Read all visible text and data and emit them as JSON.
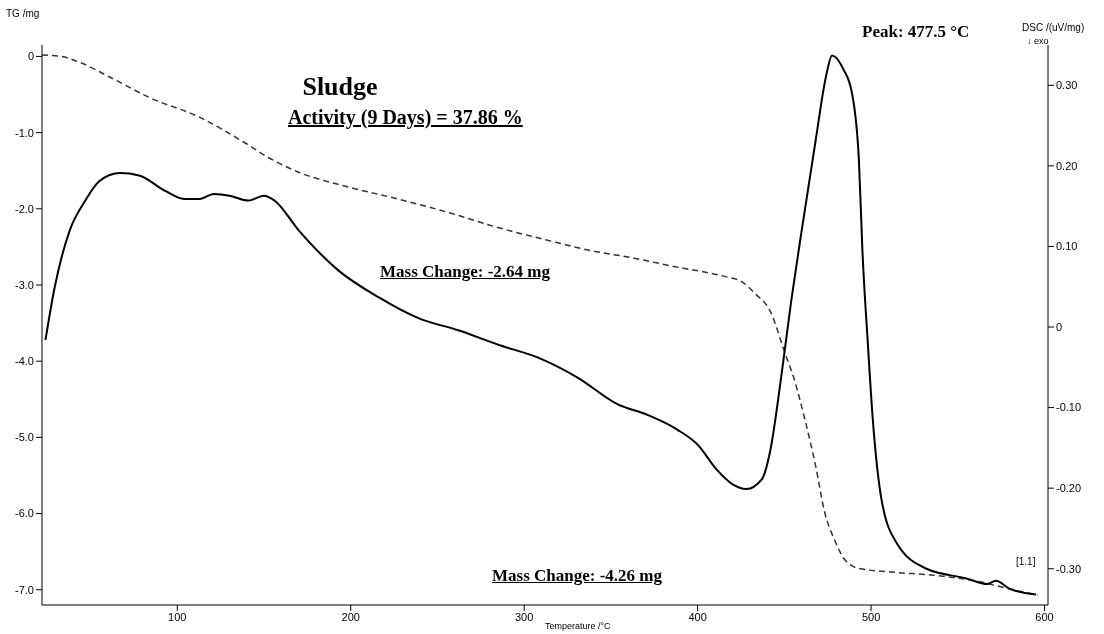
{
  "chart_data": {
    "type": "line",
    "title": "Sludge",
    "subtitle": "Activity (9 Days) = 37.86 %",
    "xlabel": "Temperature /°C",
    "ylabel": "TG /mg",
    "y2label": "DSC /(uV/mg)",
    "xlim": [
      22,
      602
    ],
    "xticks": [
      100,
      200,
      300,
      400,
      500,
      600
    ],
    "ylim": [
      -7.2,
      0.15
    ],
    "yticks": [
      0,
      {
        "value": -1,
        "label": "-1.0"
      },
      {
        "value": -2,
        "label": "-2.0"
      },
      {
        "value": -3,
        "label": "-3.0"
      },
      {
        "value": -4,
        "label": "-4.0"
      },
      {
        "value": -5,
        "label": "-5.0"
      },
      {
        "value": -6,
        "label": "-6.0"
      },
      {
        "value": -7,
        "label": "-7.0"
      }
    ],
    "y2lim": [
      -0.345,
      0.35
    ],
    "y2ticks": [
      {
        "value": 0.3,
        "label": "0.30"
      },
      {
        "value": 0.2,
        "label": "0.20"
      },
      {
        "value": 0.1,
        "label": "0.10"
      },
      0,
      {
        "value": -0.1,
        "label": "-0.10"
      },
      {
        "value": -0.2,
        "label": "-0.20"
      },
      {
        "value": -0.3,
        "label": "-0.30"
      }
    ],
    "marker": "none",
    "grid": false,
    "series": [
      {
        "type": "line",
        "color": "#333333",
        "line_style": "dashed",
        "x": [
          22,
          33,
          44,
          61,
          84,
          113,
          138,
          152,
          170,
          198,
          227,
          255,
          284,
          313,
          341,
          359,
          387,
          416,
          425,
          433,
          442,
          450,
          456,
          462,
          468,
          473,
          479,
          485,
          493,
          513,
          536,
          559,
          582,
          596
        ],
        "values": [
          0.02,
          0,
          -0.08,
          -0.27,
          -0.54,
          -0.8,
          -1.12,
          -1.32,
          -1.52,
          -1.71,
          -1.87,
          -2.04,
          -2.24,
          -2.41,
          -2.56,
          -2.63,
          -2.76,
          -2.89,
          -2.95,
          -3.11,
          -3.35,
          -3.87,
          -4.26,
          -4.78,
          -5.37,
          -5.96,
          -6.35,
          -6.61,
          -6.72,
          -6.77,
          -6.81,
          -6.88,
          -7.0,
          -7.07
        ]
      },
      {
        "type": "line",
        "axis": "y2",
        "color": "#000000",
        "line_style": "solid",
        "x": [
          24,
          29,
          38,
          47,
          55,
          67,
          78,
          93,
          104,
          113,
          121,
          130,
          141,
          150,
          156,
          170,
          193,
          216,
          239,
          262,
          285,
          308,
          331,
          354,
          371,
          388,
          400,
          411,
          420,
          428,
          437,
          442,
          448,
          454,
          460,
          468,
          474,
          477.5,
          484,
          489,
          493,
          495,
          498,
          501,
          506,
          515,
          532,
          555,
          567,
          572,
          580,
          595
        ],
        "values": [
          -0.016,
          0.046,
          0.12,
          0.157,
          0.181,
          0.191,
          0.188,
          0.169,
          0.159,
          0.159,
          0.165,
          0.163,
          0.157,
          0.163,
          0.157,
          0.12,
          0.07,
          0.037,
          0.011,
          -0.004,
          -0.022,
          -0.038,
          -0.063,
          -0.096,
          -0.109,
          -0.127,
          -0.146,
          -0.177,
          -0.195,
          -0.201,
          -0.189,
          -0.152,
          -0.065,
          0.033,
          0.12,
          0.231,
          0.311,
          0.337,
          0.32,
          0.29,
          0.206,
          0.095,
          -0.016,
          -0.115,
          -0.214,
          -0.269,
          -0.3,
          -0.312,
          -0.319,
          -0.315,
          -0.325,
          -0.332
        ]
      }
    ],
    "annotations": [
      "Mass Change: -2.64 mg",
      "Mass Change: -4.26 mg",
      "Peak: 477.5 °C",
      "[1.1]",
      "↓ exo"
    ]
  }
}
